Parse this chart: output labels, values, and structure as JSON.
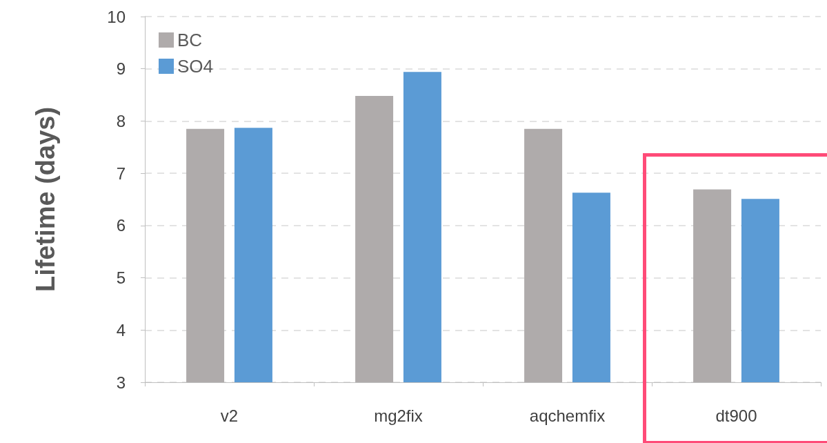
{
  "chart_data": {
    "type": "bar",
    "ylabel": "Lifetime (days)",
    "categories": [
      "v2",
      "mg2fix",
      "aqchemfix",
      "dt900"
    ],
    "series": [
      {
        "name": "BC",
        "color": "#afabab",
        "values": [
          7.85,
          8.48,
          7.85,
          6.69
        ]
      },
      {
        "name": "SO4",
        "color": "#5b9bd5",
        "values": [
          7.87,
          8.94,
          6.63,
          6.51
        ]
      }
    ],
    "ylim": [
      3,
      10
    ],
    "yticks": [
      3,
      4,
      5,
      6,
      7,
      8,
      9,
      10
    ],
    "grid": "y",
    "legend": "top left"
  }
}
